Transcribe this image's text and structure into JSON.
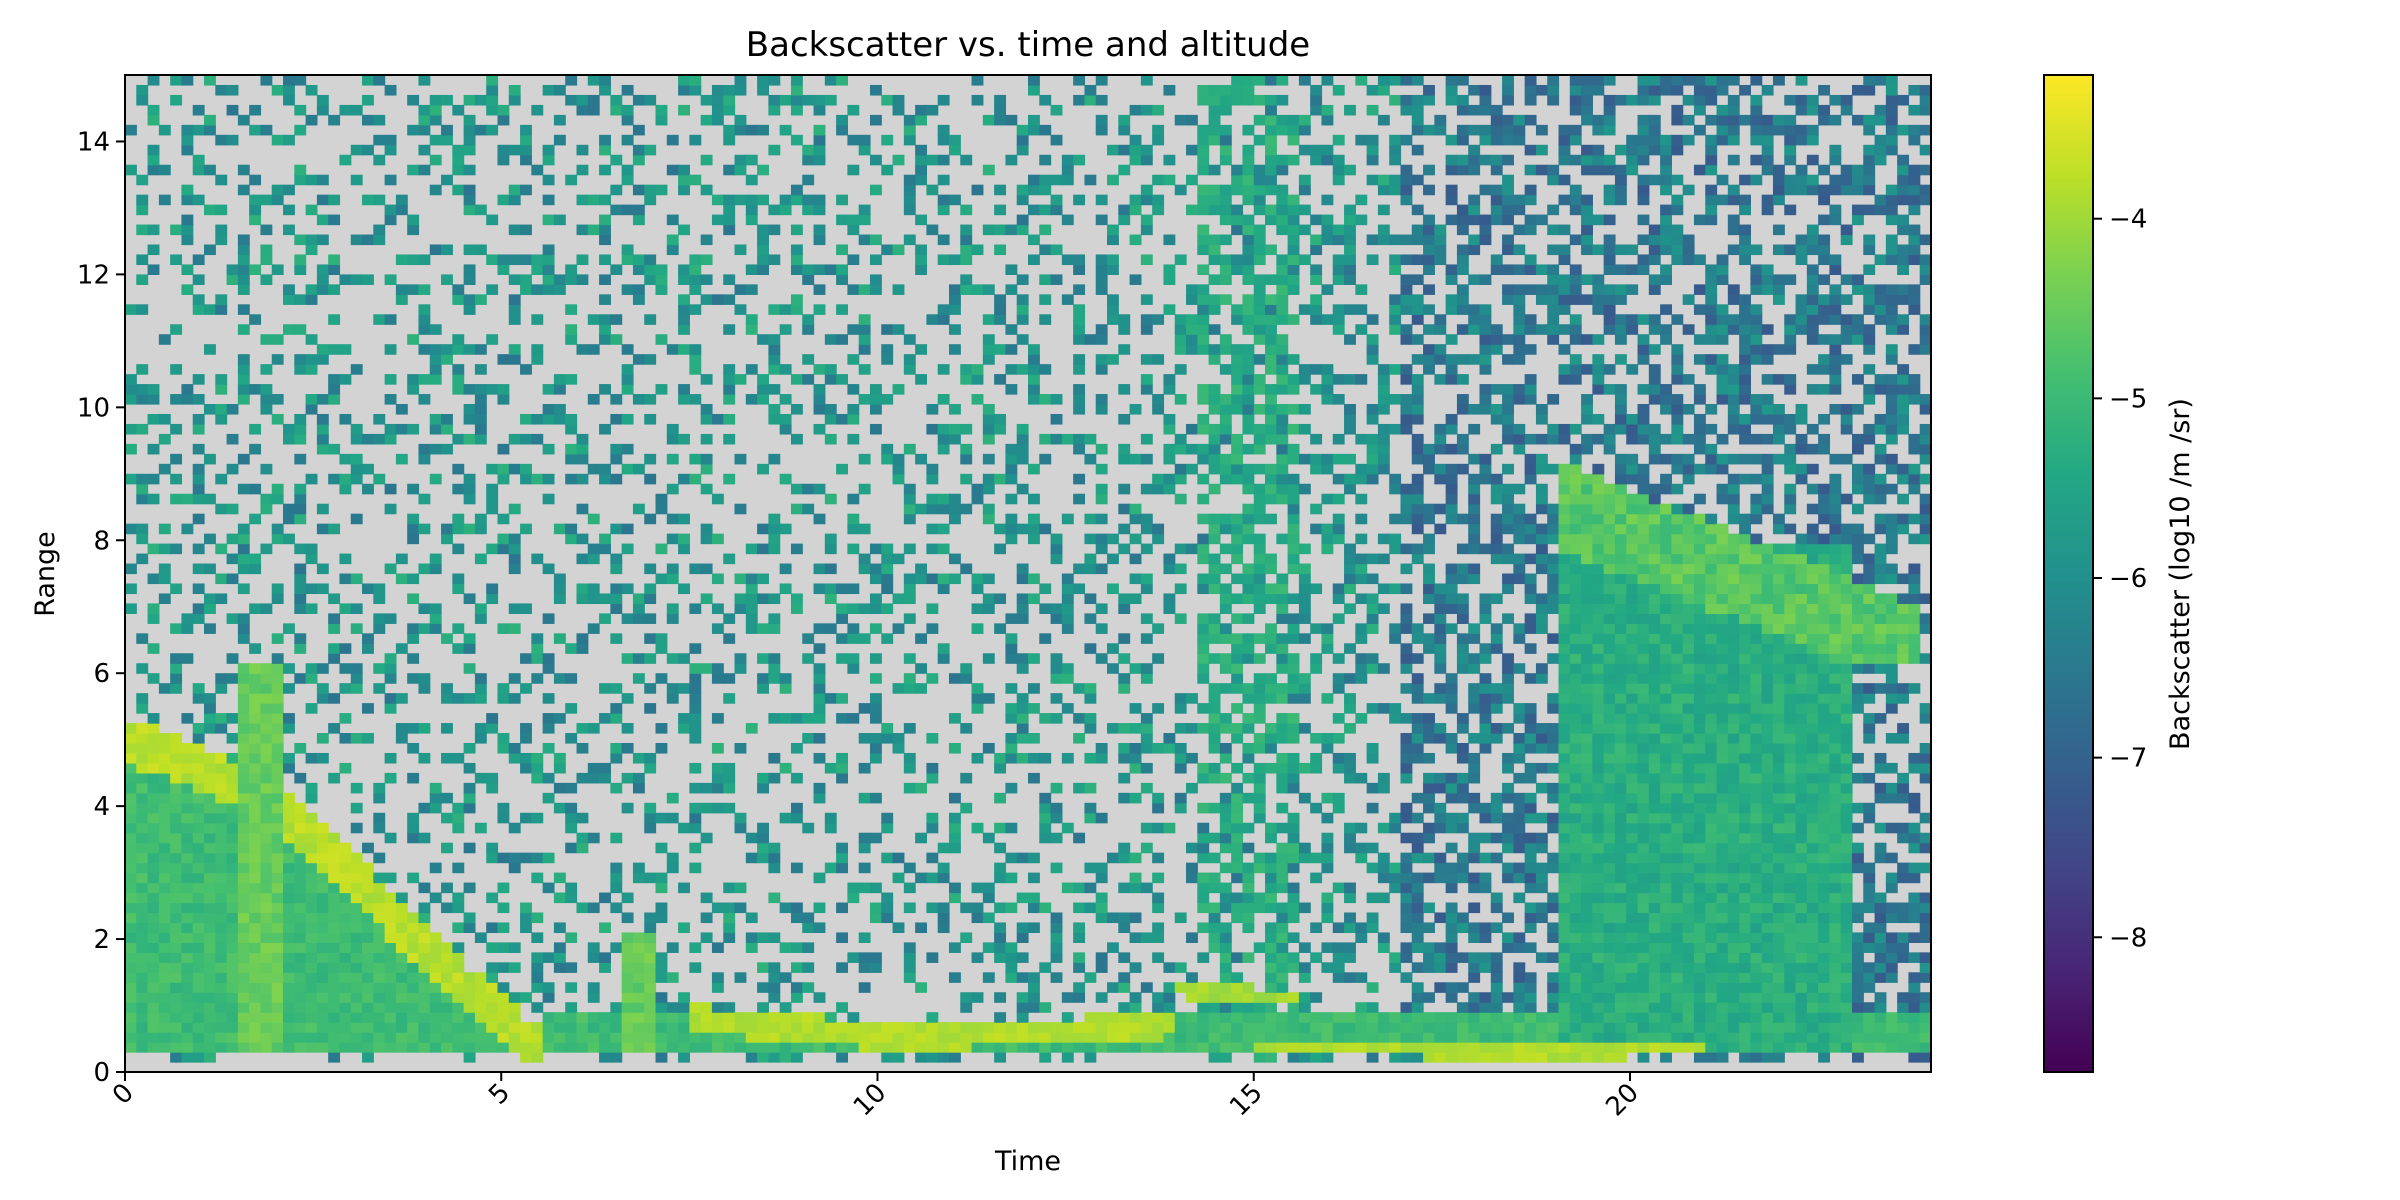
{
  "chart_data": {
    "type": "heatmap",
    "title": "Backscatter vs. time and altitude",
    "xlabel": "Time",
    "ylabel": "Range",
    "xlim": [
      0,
      24
    ],
    "ylim": [
      0,
      15
    ],
    "xticks": [
      0,
      5,
      10,
      15,
      20
    ],
    "xtick_labels": [
      "0",
      "5",
      "10",
      "15",
      "20"
    ],
    "yticks": [
      0,
      2,
      4,
      6,
      8,
      10,
      12,
      14
    ],
    "ytick_labels": [
      "0",
      "2",
      "4",
      "6",
      "8",
      "10",
      "12",
      "14"
    ],
    "xtick_rotation": "45 degrees",
    "colormap": "viridis",
    "missing_color": "#d3d3d3",
    "colorbar": {
      "label": "Backscatter (log10 /m /sr)",
      "range": [
        -8.75,
        -3.2
      ],
      "ticks": [
        -4,
        -5,
        -6,
        -7,
        -8
      ],
      "tick_labels": [
        "−4",
        "−5",
        "−6",
        "−7",
        "−8"
      ]
    },
    "features": [
      {
        "name": "descending bright layer",
        "points": [
          [
            0,
            5.0
          ],
          [
            1,
            4.6
          ],
          [
            2,
            4.0
          ],
          [
            3,
            3.0
          ],
          [
            4,
            1.8
          ],
          [
            5,
            0.8
          ],
          [
            5.5,
            0.3
          ]
        ],
        "value": -3.6
      },
      {
        "name": "spike",
        "x_center": 1.8,
        "top": 6.2,
        "value": -4.5
      },
      {
        "name": "spike",
        "x_center": 6.8,
        "top": 2.1,
        "value": -4.5
      },
      {
        "name": "low bright layer",
        "points": [
          [
            7.5,
            0.8
          ],
          [
            10,
            0.55
          ],
          [
            12.5,
            0.6
          ],
          [
            14,
            0.75
          ]
        ],
        "value": -3.7
      },
      {
        "name": "elevated layer",
        "points": [
          [
            14,
            1.25
          ],
          [
            15.6,
            1.1
          ]
        ],
        "value": -3.8
      },
      {
        "name": "surface layer",
        "points": [
          [
            15,
            0.4
          ],
          [
            17,
            0.35
          ],
          [
            19,
            0.3
          ],
          [
            21,
            0.4
          ]
        ],
        "value": -3.7
      },
      {
        "name": "cloud",
        "x_range": [
          19,
          23.8
        ],
        "y_range": [
          6.2,
          9.6
        ],
        "value": -4.8
      },
      {
        "name": "dense column",
        "x_range": [
          19,
          23
        ],
        "y_range": [
          0.25,
          8.0
        ],
        "value": -5.3
      }
    ]
  },
  "colors": {
    "missing": "#d3d3d3",
    "axes_frame": "#000000"
  }
}
